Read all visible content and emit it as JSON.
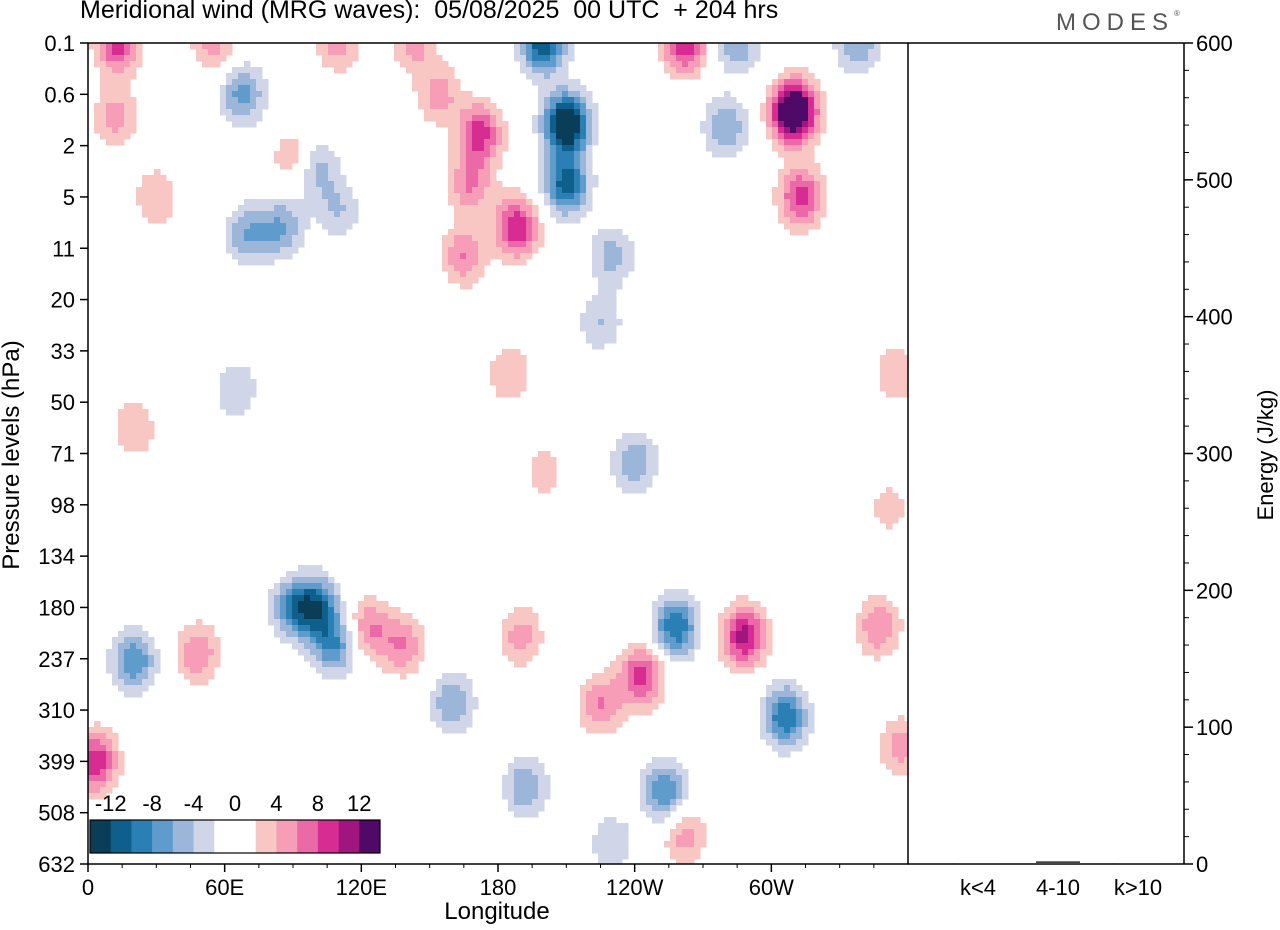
{
  "title": "Meridional wind (MRG waves):  05/08/2025  00 UTC  + 204 hrs",
  "logo": "MODES",
  "logo_mark": "®",
  "colors": {
    "scale": [
      "#0a3d58",
      "#0f5f8c",
      "#2a80b5",
      "#5f9ccc",
      "#9bb6d8",
      "#d0d6e8",
      "#ffffff",
      "#ffffff",
      "#f8c7c3",
      "#f79db8",
      "#ec69a8",
      "#d72c91",
      "#a0167e",
      "#4e0a66"
    ]
  },
  "chart_data": [
    {
      "type": "heatmap",
      "title": "Meridional wind (MRG waves):  05/08/2025  00 UTC  + 204 hrs",
      "xlabel": "Longitude",
      "ylabel": "Pressure levels (hPa)",
      "x_ticks": [
        "0",
        "60E",
        "120E",
        "180",
        "120W",
        "60W"
      ],
      "x_tick_values": [
        0,
        60,
        120,
        180,
        240,
        300
      ],
      "xlim": [
        0,
        360
      ],
      "y_ticks": [
        "0.1",
        "0.6",
        "2",
        "5",
        "11",
        "20",
        "33",
        "50",
        "71",
        "98",
        "134",
        "180",
        "237",
        "310",
        "399",
        "508",
        "632"
      ],
      "colorbar_labels": [
        "-12",
        "-8",
        "-4",
        "0",
        "4",
        "8",
        "12"
      ],
      "levels": [
        -14,
        -12,
        -10,
        -8,
        -6,
        -4,
        -2,
        0,
        2,
        4,
        6,
        8,
        10,
        12,
        14
      ],
      "blobs": [
        {
          "x": 13,
          "p": 0.1,
          "v": 9
        },
        {
          "x": 55,
          "p": 0.1,
          "v": 5
        },
        {
          "x": 110,
          "p": 0.1,
          "v": 5
        },
        {
          "x": 143,
          "p": 0.1,
          "v": 5
        },
        {
          "x": 200,
          "p": 0.1,
          "v": -12
        },
        {
          "x": 262,
          "p": 0.1,
          "v": 10
        },
        {
          "x": 285,
          "p": 0.1,
          "v": -6
        },
        {
          "x": 338,
          "p": 0.1,
          "v": -6
        },
        {
          "x": 68,
          "p": 0.6,
          "v": -7
        },
        {
          "x": 154,
          "p": 0.6,
          "v": 5
        },
        {
          "x": 12,
          "p": 1,
          "v": 5
        },
        {
          "x": 172,
          "p": 1.5,
          "v": 9
        },
        {
          "x": 210,
          "p": 1.2,
          "v": -16
        },
        {
          "x": 280,
          "p": 1.3,
          "v": -6
        },
        {
          "x": 310,
          "p": 0.9,
          "v": 18
        },
        {
          "x": 100,
          "p": 3,
          "v": -5
        },
        {
          "x": 90,
          "p": 2.5,
          "v": 4
        },
        {
          "x": 210,
          "p": 4,
          "v": -11
        },
        {
          "x": 168,
          "p": 4,
          "v": 6
        },
        {
          "x": 313,
          "p": 5,
          "v": 9
        },
        {
          "x": 30,
          "p": 5,
          "v": 4
        },
        {
          "x": 70,
          "p": 9,
          "v": -6
        },
        {
          "x": 85,
          "p": 8,
          "v": -6
        },
        {
          "x": 110,
          "p": 6,
          "v": -4
        },
        {
          "x": 188,
          "p": 8,
          "v": 10
        },
        {
          "x": 165,
          "p": 12,
          "v": 6
        },
        {
          "x": 230,
          "p": 12,
          "v": -5
        },
        {
          "x": 225,
          "p": 25,
          "v": -4
        },
        {
          "x": 185,
          "p": 40,
          "v": 4
        },
        {
          "x": 355,
          "p": 40,
          "v": 4
        },
        {
          "x": 20,
          "p": 60,
          "v": 4
        },
        {
          "x": 65,
          "p": 45,
          "v": -4
        },
        {
          "x": 240,
          "p": 75,
          "v": -6
        },
        {
          "x": 200,
          "p": 80,
          "v": 3
        },
        {
          "x": 352,
          "p": 100,
          "v": 3
        },
        {
          "x": 20,
          "p": 240,
          "v": -8
        },
        {
          "x": 48,
          "p": 230,
          "v": 6
        },
        {
          "x": 90,
          "p": 180,
          "v": -7
        },
        {
          "x": 100,
          "p": 180,
          "v": -10
        },
        {
          "x": 108,
          "p": 220,
          "v": -8
        },
        {
          "x": 123,
          "p": 200,
          "v": 6
        },
        {
          "x": 138,
          "p": 220,
          "v": 6
        },
        {
          "x": 160,
          "p": 300,
          "v": -6
        },
        {
          "x": 190,
          "p": 210,
          "v": 5
        },
        {
          "x": 192,
          "p": 450,
          "v": -6
        },
        {
          "x": 225,
          "p": 300,
          "v": 6
        },
        {
          "x": 243,
          "p": 260,
          "v": 9
        },
        {
          "x": 258,
          "p": 200,
          "v": -10
        },
        {
          "x": 253,
          "p": 460,
          "v": -8
        },
        {
          "x": 288,
          "p": 210,
          "v": 11
        },
        {
          "x": 306,
          "p": 320,
          "v": -10
        },
        {
          "x": 347,
          "p": 200,
          "v": 6
        },
        {
          "x": 357,
          "p": 370,
          "v": 5
        },
        {
          "x": 3,
          "p": 400,
          "v": 10
        },
        {
          "x": 262,
          "p": 560,
          "v": 5
        },
        {
          "x": 230,
          "p": 580,
          "v": -4
        }
      ]
    },
    {
      "type": "bar",
      "ylabel": "Energy (J/kg)",
      "categories": [
        "k<4",
        "4-10",
        "k>10"
      ],
      "values": [
        0.5,
        2,
        0.5
      ],
      "ylim": [
        0,
        600
      ],
      "y_ticks": [
        "0",
        "100",
        "200",
        "300",
        "400",
        "500",
        "600"
      ],
      "y_tick_values": [
        0,
        100,
        200,
        300,
        400,
        500,
        600
      ]
    }
  ]
}
